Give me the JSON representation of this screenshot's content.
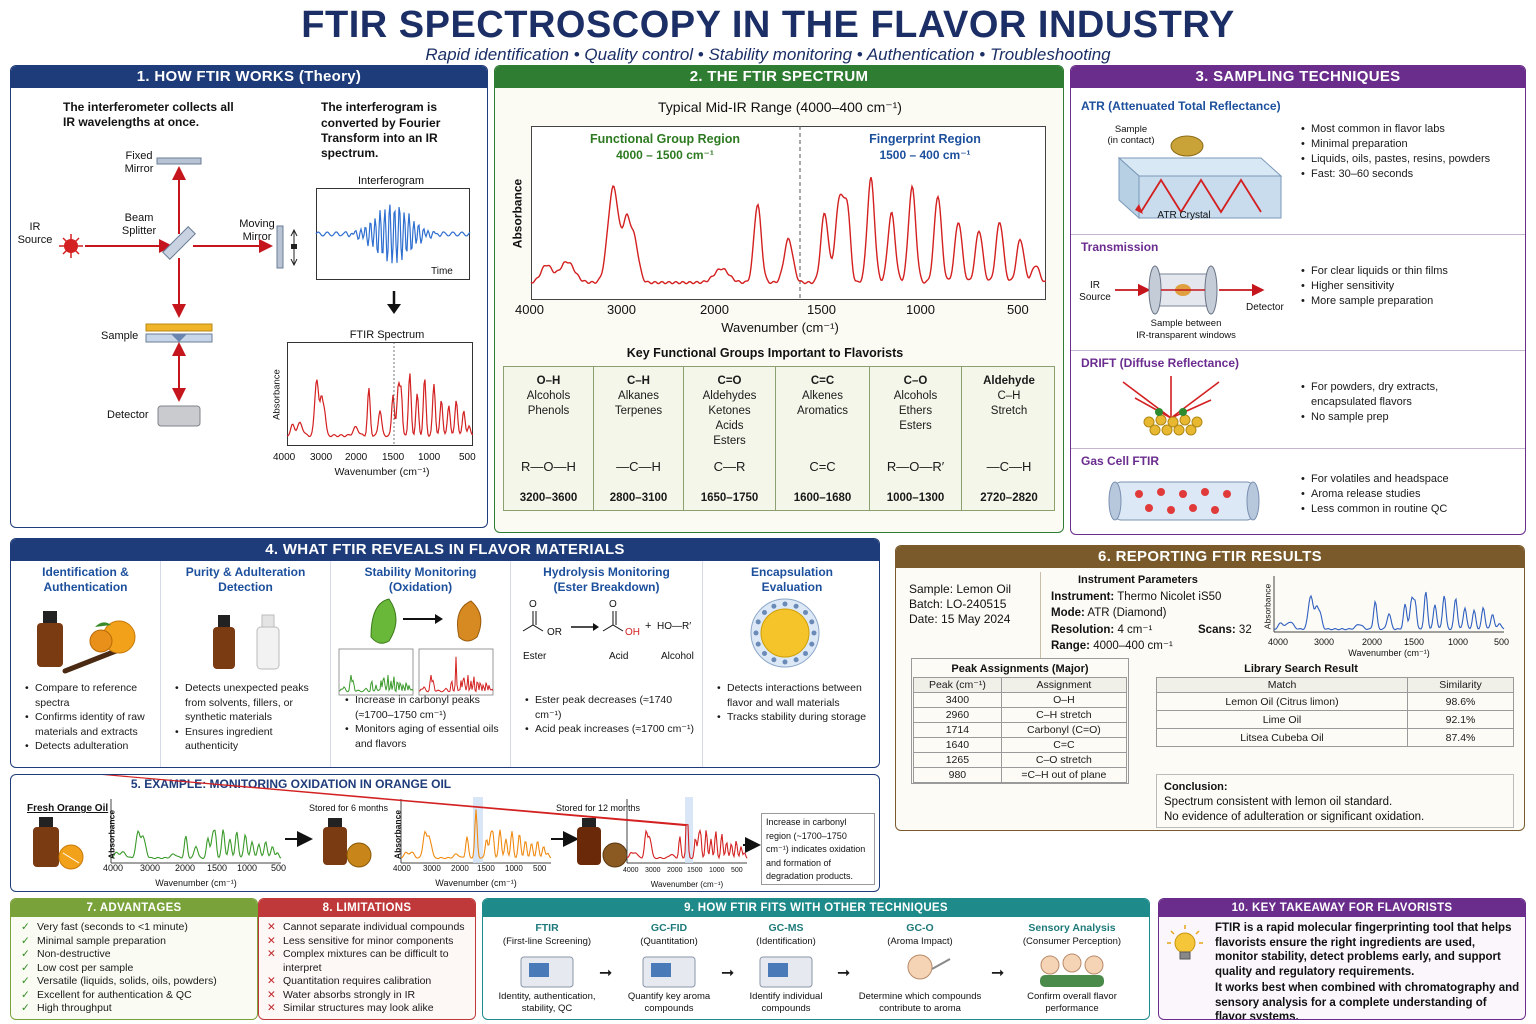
{
  "header": {
    "title": "FTIR SPECTROSCOPY IN THE FLAVOR INDUSTRY",
    "subtitle": "Rapid identification • Quality control • Stability monitoring • Authentication • Troubleshooting"
  },
  "colors": {
    "navy": "#1f3c7a",
    "green": "#2f7d32",
    "purple": "#6a2d8c",
    "brown": "#7a5a2a",
    "red": "#d32020"
  },
  "p1": {
    "title": "1. HOW FTIR WORKS (Theory)",
    "text_left": "The interferometer collects all IR wavelengths at once.",
    "text_right_a": "The interferogram is",
    "text_right_b": "converted by Fourier Transform into an IR spectrum.",
    "labels": {
      "fixed_mirror": "Fixed Mirror",
      "ir_source": "IR Source",
      "beam_splitter": "Beam Splitter",
      "moving_mirror": "Moving Mirror",
      "sample": "Sample",
      "detector": "Detector",
      "interferogram": "Interferogram",
      "time": "Time",
      "ftir_spectrum": "FTIR Spectrum",
      "absorbance": "Absorbance",
      "wavenumber": "Wavenumber (cm⁻¹)"
    },
    "ticks": [
      "4000",
      "3000",
      "2000",
      "1500",
      "1000",
      "500"
    ]
  },
  "p2": {
    "title": "2. THE FTIR SPECTRUM",
    "range_title": "Typical Mid-IR Range (4000–400 cm⁻¹)",
    "functional_region": "Functional Group Region",
    "functional_range": "4000 – 1500 cm⁻¹",
    "fingerprint_region": "Fingerprint Region",
    "fingerprint_range": "1500 – 400 cm⁻¹",
    "ylabel": "Absorbance",
    "xlabel": "Wavenumber (cm⁻¹)",
    "ticks": [
      "4000",
      "3000",
      "2000",
      "1500",
      "1000",
      "500"
    ],
    "groups_title": "Key Functional Groups Important to Flavorists",
    "groups": [
      {
        "bond": "O–H",
        "kinds": "Alcohols\nPhenols",
        "structure": "R—O—H",
        "range": "3200–3600"
      },
      {
        "bond": "C–H",
        "kinds": "Alkanes\nTerpenes",
        "structure": "—C—H",
        "range": "2800–3100"
      },
      {
        "bond": "C=O",
        "kinds": "Aldehydes\nKetones\nAcids\nEsters",
        "structure": "C—R",
        "range": "1650–1750"
      },
      {
        "bond": "C=C",
        "kinds": "Alkenes\nAromatics",
        "structure": "C=C",
        "range": "1600–1680"
      },
      {
        "bond": "C–O",
        "kinds": "Alcohols\nEthers\nEsters",
        "structure": "R—O—R′",
        "range": "1000–1300"
      },
      {
        "bond": "Aldehyde",
        "kinds": "C–H\nStretch",
        "structure": "—C—H",
        "range": "2720–2820"
      }
    ]
  },
  "p3": {
    "title": "3. SAMPLING TECHNIQUES",
    "atr": {
      "name": "ATR (Attenuated Total Reflectance)",
      "sample_label": "Sample\n(in contact)",
      "crystal_label": "ATR Crystal",
      "points": [
        "Most common in flavor labs",
        "Minimal preparation",
        "Liquids, oils, pastes, resins, powders",
        "Fast: 30–60 seconds"
      ]
    },
    "transmission": {
      "name": "Transmission",
      "ir_source": "IR\nSource",
      "detector": "Detector",
      "sample_label": "Sample between\nIR-transparent windows",
      "points": [
        "For clear liquids or thin films",
        "Higher sensitivity",
        "More sample preparation"
      ]
    },
    "drift": {
      "name": "DRIFT (Diffuse Reflectance)",
      "points": [
        "For powders, dry extracts, encapsulated flavors",
        "No sample prep"
      ]
    },
    "gas": {
      "name": "Gas Cell FTIR",
      "points": [
        "For volatiles and headspace",
        "Aroma release studies",
        "Less common in routine QC"
      ]
    }
  },
  "p4": {
    "title": "4. WHAT FTIR REVEALS IN FLAVOR MATERIALS",
    "cols": [
      {
        "heading": "Identification &\nAuthentication",
        "points": [
          "Compare to reference spectra",
          "Confirms identity of raw materials and extracts",
          "Detects adulteration"
        ]
      },
      {
        "heading": "Purity & Adulteration\nDetection",
        "points": [
          "Detects unexpected peaks from solvents, fillers, or synthetic materials",
          "Ensures ingredient authenticity"
        ]
      },
      {
        "heading": "Stability Monitoring\n(Oxidation)",
        "points": [
          "Increase in carbonyl peaks (≈1700–1750 cm⁻¹)",
          "Monitors aging of essential oils and flavors"
        ]
      },
      {
        "heading": "Hydrolysis Monitoring\n(Ester Breakdown)",
        "points": [
          "Ester peak decreases (≈1740 cm⁻¹)",
          "Acid peak increases (≈1700 cm⁻¹)"
        ],
        "labels": {
          "ester": "Ester",
          "acid": "Acid",
          "alcohol": "Alcohol",
          "hor": "HO—R′",
          "or": "OR",
          "oh": "OH",
          "plus": "+"
        }
      },
      {
        "heading": "Encapsulation\nEvaluation",
        "points": [
          "Detects interactions between flavor and wall materials",
          "Tracks stability during storage"
        ]
      }
    ]
  },
  "p5": {
    "title": "5. EXAMPLE: MONITORING OXIDATION IN ORANGE OIL",
    "fresh": "Fresh Orange Oil",
    "six": "Stored for 6 months",
    "twelve": "Stored for 12 months",
    "ylabel": "Absorbance",
    "xlabel": "Wavenumber (cm⁻¹)",
    "ticks": [
      "4000",
      "3000",
      "2000",
      "1500",
      "1000",
      "500"
    ],
    "note": "Increase in carbonyl region (~1700–1750 cm⁻¹) indicates oxidation and formation of degradation products."
  },
  "p6": {
    "title": "6. REPORTING FTIR RESULTS",
    "sample": "Sample: Lemon Oil",
    "batch": "Batch: LO-240515",
    "date": "Date: 15 May 2024",
    "params_title": "Instrument Parameters",
    "instrument_k": "Instrument:",
    "instrument_v": "Thermo Nicolet iS50",
    "mode_k": "Mode:",
    "mode_v": "ATR (Diamond)",
    "res_k": "Resolution:",
    "res_v": "4 cm⁻¹",
    "scans_k": "Scans:",
    "scans_v": "32",
    "range_k": "Range:",
    "range_v": "4000–400 cm⁻¹",
    "ylabel": "Absorbance",
    "xlabel": "Wavenumber (cm⁻¹)",
    "ticks": [
      "4000",
      "3000",
      "2000",
      "1500",
      "1000",
      "500"
    ],
    "peaks_title": "Peak Assignments (Major)",
    "peaks_head": [
      "Peak (cm⁻¹)",
      "Assignment"
    ],
    "peaks": [
      [
        "3400",
        "O–H"
      ],
      [
        "2960",
        "C–H stretch"
      ],
      [
        "1714",
        "Carbonyl (C=O)"
      ],
      [
        "1640",
        "C=C"
      ],
      [
        "1265",
        "C–O stretch"
      ],
      [
        "980",
        "=C–H out of plane"
      ]
    ],
    "library_title": "Library Search Result",
    "library_head": [
      "Match",
      "Similarity"
    ],
    "library": [
      [
        "Lemon Oil (Citrus limon)",
        "98.6%"
      ],
      [
        "Lime Oil",
        "92.1%"
      ],
      [
        "Litsea Cubeba Oil",
        "87.4%"
      ]
    ],
    "conclusion_title": "Conclusion:",
    "conclusion": [
      "Spectrum consistent with lemon oil standard.",
      "No evidence of adulteration or significant oxidation."
    ]
  },
  "p7": {
    "title": "7. ADVANTAGES",
    "items": [
      "Very fast (seconds to <1 minute)",
      "Minimal sample preparation",
      "Non-destructive",
      "Low cost per sample",
      "Versatile (liquids, solids, oils, powders)",
      "Excellent for authentication & QC",
      "High throughput"
    ]
  },
  "p8": {
    "title": "8. LIMITATIONS",
    "items": [
      "Cannot separate individual compounds",
      "Less sensitive for minor components",
      "Complex mixtures can be difficult to interpret",
      "Quantitation requires calibration",
      "Water absorbs strongly in IR",
      "Similar structures may look alike"
    ]
  },
  "p9": {
    "title": "9. HOW FTIR FITS WITH OTHER TECHNIQUES",
    "steps": [
      {
        "name": "FTIR",
        "role": "(First-line Screening)",
        "desc": "Identity, authentication, stability, QC"
      },
      {
        "name": "GC-FID",
        "role": "(Quantitation)",
        "desc": "Quantify key aroma compounds"
      },
      {
        "name": "GC-MS",
        "role": "(Identification)",
        "desc": "Identify individual compounds"
      },
      {
        "name": "GC-O",
        "role": "(Aroma Impact)",
        "desc": "Determine which compounds contribute to aroma"
      },
      {
        "name": "Sensory Analysis",
        "role": "(Consumer Perception)",
        "desc": "Confirm overall flavor performance"
      }
    ]
  },
  "p10": {
    "title": "10. KEY TAKEAWAY FOR FLAVORISTS",
    "text1": "FTIR is a rapid molecular fingerprinting tool that helps flavorists ensure the right ingredients are used, monitor stability, detect problems early, and support quality and regulatory requirements.",
    "text2": "It works best when combined with chromatography and sensory analysis for a complete understanding of flavor systems."
  }
}
